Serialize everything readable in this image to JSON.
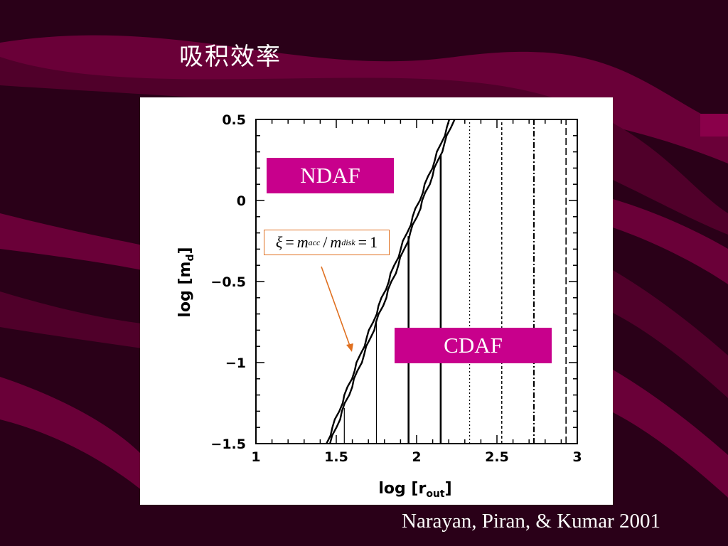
{
  "slide": {
    "title": "吸积效率",
    "citation": "Narayan, Piran, & Kumar 2001"
  },
  "annotations": {
    "ndaf": "NDAF",
    "cdaf": "CDAF",
    "equation": {
      "xi": "ξ",
      "eq1": "=",
      "m1": "m",
      "sub1": "acc",
      "slash": "/",
      "m2": "m",
      "sub2": "disk",
      "eq2": "=",
      "one": "1"
    }
  },
  "colors": {
    "background": "#2a0018",
    "ribbon": "#6a0038",
    "label_box": "#c8008c",
    "arrow": "#e07020"
  },
  "chart_data": {
    "type": "line",
    "xlabel": "log [r",
    "xlabel_sub": "out",
    "xlabel_close": "]",
    "ylabel": "log [m",
    "ylabel_sub": "d",
    "ylabel_close": "]",
    "xlim": [
      1,
      3
    ],
    "ylim": [
      -1.5,
      0.5
    ],
    "x_ticks": [
      1,
      1.5,
      2,
      2.5,
      3
    ],
    "x_tick_labels": [
      "1",
      "1.5",
      "2",
      "2.5",
      "3"
    ],
    "y_ticks": [
      -1.5,
      -1,
      -0.5,
      0,
      0.5
    ],
    "y_tick_labels": [
      "−1.5",
      "−1",
      "−0.5",
      "0",
      "0.5"
    ],
    "boundary_line": {
      "x": [
        1.45,
        2.22
      ],
      "y": [
        -1.5,
        0.5
      ]
    },
    "vertical_lines": [
      {
        "x": 1.55,
        "y_start": -1.28,
        "style": "thin-solid"
      },
      {
        "x": 1.75,
        "y_start": -0.75,
        "style": "thin-solid"
      },
      {
        "x": 1.95,
        "y_start": -0.22,
        "style": "thick-solid"
      },
      {
        "x": 2.15,
        "y_start": 0.28,
        "style": "thick-solid"
      },
      {
        "x": 2.33,
        "y_start": 0.5,
        "style": "dotted"
      },
      {
        "x": 2.53,
        "y_start": 0.5,
        "style": "dashed"
      },
      {
        "x": 2.73,
        "y_start": 0.5,
        "style": "dash-dot"
      },
      {
        "x": 2.93,
        "y_start": 0.5,
        "style": "long-dash"
      }
    ]
  }
}
